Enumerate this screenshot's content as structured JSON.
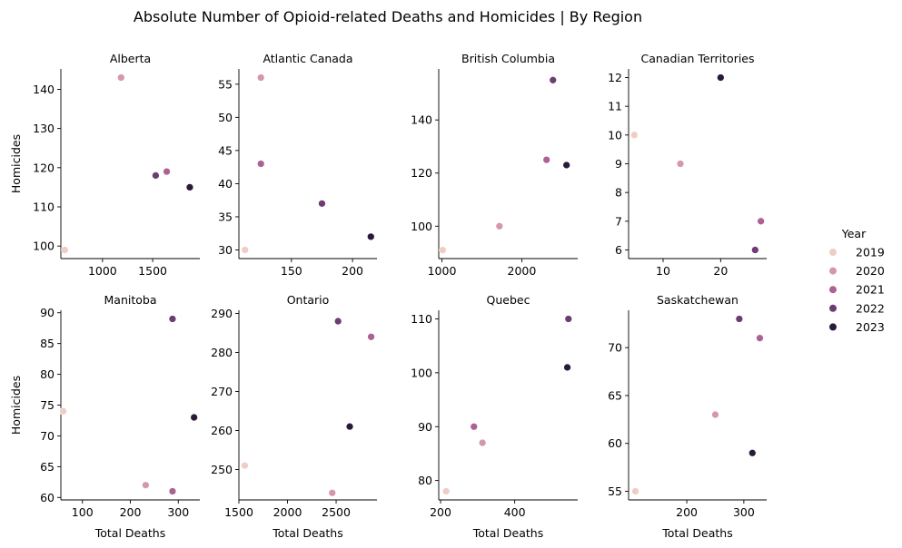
{
  "chart_data": {
    "type": "scatter",
    "title": "Absolute Number of Opioid-related Deaths and Homicides | By Region",
    "xlabel": "Total Deaths",
    "ylabel": "Homicides",
    "legend": {
      "title": "Year",
      "placement": "right",
      "entries": [
        {
          "label": "2019",
          "color": "#f0cdc4"
        },
        {
          "label": "2020",
          "color": "#d497ac"
        },
        {
          "label": "2021",
          "color": "#ac6294"
        },
        {
          "label": "2022",
          "color": "#6e3c73"
        },
        {
          "label": "2023",
          "color": "#2a1a3a"
        }
      ]
    },
    "panels": [
      {
        "name": "Alberta",
        "xlim": [
          585,
          1970
        ],
        "ylim": [
          96.8,
          145.2
        ],
        "xticks": [
          1000,
          1500
        ],
        "yticks": [
          100,
          110,
          120,
          130,
          140
        ],
        "points": [
          {
            "year": "2019",
            "x": 625,
            "y": 99
          },
          {
            "year": "2020",
            "x": 1185,
            "y": 143
          },
          {
            "year": "2021",
            "x": 1640,
            "y": 119
          },
          {
            "year": "2022",
            "x": 1530,
            "y": 118
          },
          {
            "year": "2023",
            "x": 1870,
            "y": 115
          }
        ]
      },
      {
        "name": "Atlantic Canada",
        "xlim": [
          107,
          220
        ],
        "ylim": [
          28.7,
          57.3
        ],
        "xticks": [
          150,
          200
        ],
        "yticks": [
          30,
          35,
          40,
          45,
          50,
          55
        ],
        "points": [
          {
            "year": "2019",
            "x": 112,
            "y": 30
          },
          {
            "year": "2020",
            "x": 125,
            "y": 56
          },
          {
            "year": "2021",
            "x": 125,
            "y": 43
          },
          {
            "year": "2022",
            "x": 175,
            "y": 37
          },
          {
            "year": "2023",
            "x": 215,
            "y": 32
          }
        ]
      },
      {
        "name": "British Columbia",
        "xlim": [
          960,
          2700
        ],
        "ylim": [
          87.8,
          159.2
        ],
        "xticks": [
          1000,
          2000
        ],
        "yticks": [
          100,
          120,
          140
        ],
        "points": [
          {
            "year": "2019",
            "x": 1010,
            "y": 91
          },
          {
            "year": "2020",
            "x": 1720,
            "y": 100
          },
          {
            "year": "2021",
            "x": 2310,
            "y": 125
          },
          {
            "year": "2022",
            "x": 2390,
            "y": 155
          },
          {
            "year": "2023",
            "x": 2560,
            "y": 123
          }
        ]
      },
      {
        "name": "Canadian Territories",
        "xlim": [
          4,
          28
        ],
        "ylim": [
          5.7,
          12.3
        ],
        "xticks": [
          10,
          20
        ],
        "yticks": [
          6,
          7,
          8,
          9,
          10,
          11,
          12
        ],
        "points": [
          {
            "year": "2019",
            "x": 5,
            "y": 10
          },
          {
            "year": "2020",
            "x": 13,
            "y": 9
          },
          {
            "year": "2021",
            "x": 27,
            "y": 7
          },
          {
            "year": "2022",
            "x": 26,
            "y": 6
          },
          {
            "year": "2023",
            "x": 20,
            "y": 12
          }
        ]
      },
      {
        "name": "Manitoba",
        "xlim": [
          55,
          345
        ],
        "ylim": [
          59.6,
          90.4
        ],
        "xticks": [
          100,
          200,
          300
        ],
        "yticks": [
          60,
          65,
          70,
          75,
          80,
          85,
          90
        ],
        "points": [
          {
            "year": "2019",
            "x": 60,
            "y": 74
          },
          {
            "year": "2020",
            "x": 232,
            "y": 62
          },
          {
            "year": "2021",
            "x": 288,
            "y": 61
          },
          {
            "year": "2022",
            "x": 288,
            "y": 89
          },
          {
            "year": "2023",
            "x": 333,
            "y": 73
          }
        ]
      },
      {
        "name": "Ontario",
        "xlim": [
          1500,
          2920
        ],
        "ylim": [
          242.2,
          290.8
        ],
        "xticks": [
          1500,
          2000,
          2500
        ],
        "yticks": [
          250,
          260,
          270,
          280,
          290
        ],
        "points": [
          {
            "year": "2019",
            "x": 1560,
            "y": 251
          },
          {
            "year": "2020",
            "x": 2460,
            "y": 244
          },
          {
            "year": "2021",
            "x": 2860,
            "y": 284
          },
          {
            "year": "2022",
            "x": 2520,
            "y": 288
          },
          {
            "year": "2023",
            "x": 2640,
            "y": 261
          }
        ]
      },
      {
        "name": "Quebec",
        "xlim": [
          195,
          570
        ],
        "ylim": [
          76.4,
          111.6
        ],
        "xticks": [
          200,
          400
        ],
        "yticks": [
          80,
          90,
          100,
          110
        ],
        "points": [
          {
            "year": "2019",
            "x": 215,
            "y": 78
          },
          {
            "year": "2020",
            "x": 313,
            "y": 87
          },
          {
            "year": "2021",
            "x": 290,
            "y": 90
          },
          {
            "year": "2022",
            "x": 545,
            "y": 110
          },
          {
            "year": "2023",
            "x": 542,
            "y": 101
          }
        ]
      },
      {
        "name": "Saskatchewan",
        "xlim": [
          98,
          340
        ],
        "ylim": [
          54.1,
          73.9
        ],
        "xticks": [
          200,
          300
        ],
        "yticks": [
          55,
          60,
          65,
          70
        ],
        "points": [
          {
            "year": "2019",
            "x": 110,
            "y": 55
          },
          {
            "year": "2020",
            "x": 250,
            "y": 63
          },
          {
            "year": "2021",
            "x": 328,
            "y": 71
          },
          {
            "year": "2022",
            "x": 292,
            "y": 73
          },
          {
            "year": "2023",
            "x": 315,
            "y": 59
          }
        ]
      }
    ]
  }
}
